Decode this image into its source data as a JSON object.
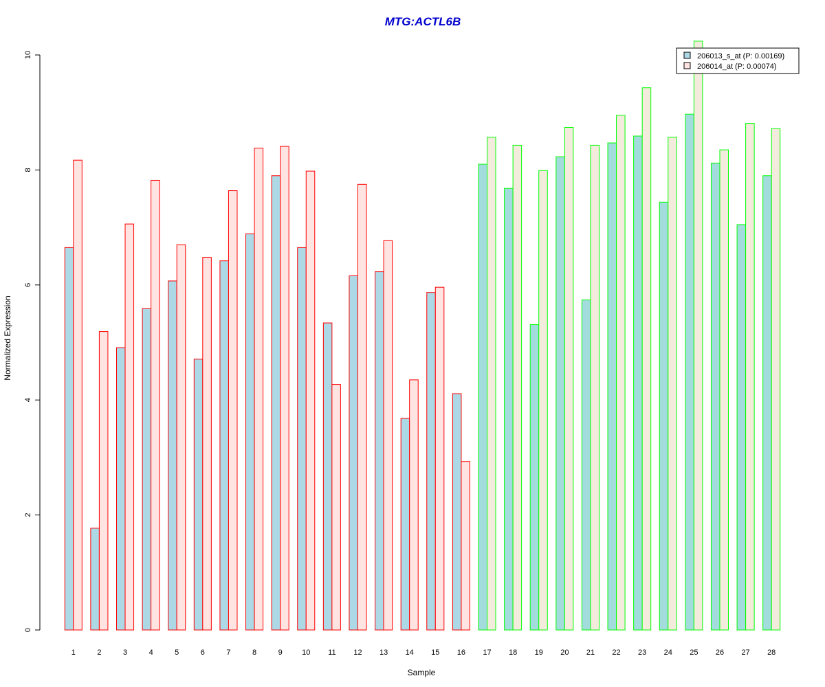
{
  "chart_data": {
    "type": "bar",
    "title": "MTG:ACTL6B",
    "xlabel": "Sample",
    "ylabel": "Normalized Expression",
    "ylim": [
      0,
      10
    ],
    "yticks": [
      "0",
      "2",
      "4",
      "6",
      "8",
      "10"
    ],
    "categories": [
      "1",
      "2",
      "3",
      "4",
      "5",
      "6",
      "7",
      "8",
      "9",
      "10",
      "11",
      "12",
      "13",
      "14",
      "15",
      "16",
      "17",
      "18",
      "19",
      "20",
      "21",
      "22",
      "23",
      "24",
      "25",
      "26",
      "27",
      "28"
    ],
    "series": [
      {
        "name": "206013_s_at (P: 0.00169)",
        "values": [
          6.65,
          1.77,
          4.91,
          5.59,
          6.07,
          4.71,
          6.42,
          6.89,
          7.9,
          6.65,
          5.34,
          6.16,
          6.23,
          3.68,
          5.87,
          4.11,
          8.1,
          7.68,
          5.31,
          8.23,
          5.74,
          8.47,
          8.59,
          7.44,
          8.97,
          8.12,
          7.05,
          7.9
        ],
        "fill": "#add8e6",
        "fill_group2": "#a2dcdc"
      },
      {
        "name": "206014_at (P: 0.00074)",
        "values": [
          8.17,
          5.19,
          7.06,
          7.82,
          6.7,
          6.48,
          7.64,
          8.38,
          8.41,
          7.98,
          4.27,
          7.75,
          6.77,
          4.35,
          5.96,
          2.93,
          8.57,
          8.43,
          7.99,
          8.74,
          8.43,
          8.95,
          9.43,
          8.57,
          10.24,
          8.35,
          8.81,
          8.72
        ],
        "fill": "#ffe4e1",
        "fill_group2": "#f3ebdc"
      }
    ],
    "groups": [
      {
        "samples": [
          1,
          16
        ],
        "border_color": "#ff0000"
      },
      {
        "samples": [
          17,
          28
        ],
        "border_color": "#00ff00"
      }
    ],
    "grid": false,
    "legend_position": "top-right",
    "colors": {
      "title": "#0000cd",
      "axis": "#000000",
      "legend_border": "#000000"
    }
  }
}
